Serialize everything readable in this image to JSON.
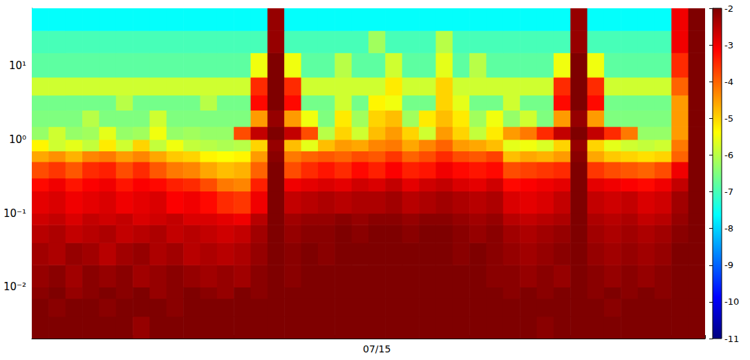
{
  "chart_data": {
    "type": "heatmap",
    "categories": [
      null,
      null,
      null,
      null,
      null,
      null,
      null,
      null,
      null,
      null,
      null,
      null,
      null,
      null,
      null,
      null,
      null,
      null,
      null,
      null,
      "07/15",
      null,
      null,
      null,
      null,
      null,
      null,
      null,
      null,
      null,
      null,
      null,
      null,
      null,
      null,
      null,
      null,
      null,
      null,
      null
    ],
    "y_edges": [
      0.002,
      0.004,
      0.007,
      0.01,
      0.02,
      0.04,
      0.07,
      0.1,
      0.2,
      0.3,
      0.5,
      0.7,
      1,
      1.5,
      2.5,
      4,
      7,
      15,
      30,
      60
    ],
    "cells": [
      [
        -2,
        -2,
        -2,
        -2,
        -2,
        -2,
        -2.2,
        -2,
        -2,
        -2,
        -2,
        -2,
        -2,
        -2,
        -2,
        -2,
        -2,
        -2,
        -2,
        -2,
        -2,
        -2,
        -2,
        -2,
        -2,
        -2,
        -2,
        -2,
        -2,
        -2,
        -2.1,
        -2,
        -2,
        -2,
        -2,
        -2,
        -2,
        -2,
        -2,
        -2
      ],
      [
        -2,
        -2.1,
        -2,
        -2,
        -2.1,
        -2,
        -2,
        -2,
        -2.1,
        -2,
        -2,
        -2,
        -2,
        -2,
        -2,
        -2,
        -2,
        -2,
        -2,
        -2,
        -2,
        -2,
        -2,
        -2,
        -2,
        -2,
        -2,
        -2,
        -2,
        -2,
        -2,
        -2,
        -2,
        -2,
        -2.1,
        -2,
        -2,
        -2,
        -2,
        -2
      ],
      [
        -2.1,
        -2,
        -2.2,
        -2.1,
        -2,
        -2.1,
        -2,
        -2.2,
        -2.1,
        -2,
        -2.1,
        -2.2,
        -2,
        -2.1,
        -2,
        -2,
        -2,
        -2,
        -2,
        -2,
        -2,
        -2,
        -2,
        -2,
        -2,
        -2,
        -2,
        -2,
        -2.1,
        -2,
        -2.1,
        -2,
        -2,
        -2.1,
        -2,
        -2.1,
        -2,
        -2.1,
        -2,
        -2
      ],
      [
        -2.2,
        -2.1,
        -2.3,
        -2.1,
        -2.2,
        -2.1,
        -2.3,
        -2.2,
        -2.1,
        -2.2,
        -2.3,
        -2.2,
        -2.3,
        -2.1,
        -2,
        -2.1,
        -2,
        -2,
        -2,
        -2,
        -2,
        -2,
        -2,
        -2,
        -2,
        -2,
        -2,
        -2.1,
        -2.1,
        -2.2,
        -2.1,
        -2.2,
        -2,
        -2.1,
        -2.2,
        -2.1,
        -2.2,
        -2.1,
        -2,
        -2
      ],
      [
        -2.3,
        -2.4,
        -2.2,
        -2.3,
        -2.5,
        -2.3,
        -2.2,
        -2.4,
        -2.3,
        -2.5,
        -2.4,
        -2.5,
        -2.4,
        -2.2,
        -2,
        -2.1,
        -2,
        -2.1,
        -2,
        -2,
        -2,
        -2,
        -2,
        -2,
        -2,
        -2.1,
        -2,
        -2.1,
        -2.2,
        -2.3,
        -2.2,
        -2.1,
        -2,
        -2.2,
        -2.3,
        -2.2,
        -2.3,
        -2.2,
        -2,
        -2
      ],
      [
        -2.5,
        -2.4,
        -2.6,
        -2.5,
        -2.4,
        -2.6,
        -2.5,
        -2.4,
        -2.6,
        -2.5,
        -2.6,
        -2.7,
        -2.6,
        -2.3,
        -2,
        -2.2,
        -2.1,
        -2.1,
        -2,
        -2.1,
        -2,
        -2,
        -2.1,
        -2,
        -2,
        -2.1,
        -2.2,
        -2.1,
        -2.3,
        -2.4,
        -2.3,
        -2.2,
        -2,
        -2.3,
        -2.4,
        -2.3,
        -2.4,
        -2.3,
        -2.1,
        -2
      ],
      [
        -2.7,
        -2.6,
        -2.8,
        -2.6,
        -2.7,
        -2.6,
        -2.8,
        -2.7,
        -2.6,
        -2.8,
        -2.8,
        -2.9,
        -3.0,
        -2.5,
        -2,
        -2.3,
        -2.2,
        -2.2,
        -2.1,
        -2.2,
        -2.1,
        -2.1,
        -2.2,
        -2.1,
        -2.1,
        -2.2,
        -2.3,
        -2.2,
        -2.5,
        -2.6,
        -2.5,
        -2.4,
        -2,
        -2.4,
        -2.5,
        -2.4,
        -2.6,
        -2.5,
        -2.2,
        -2
      ],
      [
        -2.9,
        -2.8,
        -3.0,
        -2.9,
        -2.8,
        -3.0,
        -2.9,
        -2.8,
        -3.1,
        -3.0,
        -3.2,
        -3.5,
        -3.6,
        -3.0,
        -2,
        -2.6,
        -2.5,
        -2.4,
        -2.5,
        -2.4,
        -2.4,
        -2.3,
        -2.5,
        -2.4,
        -2.3,
        -2.4,
        -2.5,
        -2.4,
        -2.8,
        -2.9,
        -2.8,
        -2.6,
        -2,
        -2.6,
        -2.7,
        -2.6,
        -2.8,
        -2.7,
        -2.3,
        -2
      ],
      [
        -3.2,
        -3.0,
        -3.3,
        -3.1,
        -3.0,
        -3.3,
        -3.1,
        -3.2,
        -3.4,
        -3.5,
        -3.8,
        -4.2,
        -4.3,
        -3.4,
        -2,
        -3.0,
        -2.9,
        -2.8,
        -2.9,
        -2.7,
        -2.8,
        -2.6,
        -2.9,
        -2.7,
        -2.6,
        -2.8,
        -2.9,
        -2.7,
        -3.2,
        -3.1,
        -3.0,
        -2.9,
        -2,
        -2.9,
        -3.0,
        -3.1,
        -3.2,
        -3.0,
        -2.6,
        -2
      ],
      [
        -3.8,
        -3.6,
        -3.9,
        -3.5,
        -3.4,
        -3.8,
        -3.5,
        -3.9,
        -4.2,
        -4.3,
        -4.6,
        -4.8,
        -4.7,
        -4.0,
        -2,
        -3.8,
        -3.5,
        -3.3,
        -3.5,
        -3.2,
        -3.4,
        -3.1,
        -3.4,
        -3.3,
        -3.0,
        -3.2,
        -3.3,
        -3.2,
        -3.8,
        -3.7,
        -3.6,
        -3.5,
        -2,
        -3.6,
        -3.8,
        -3.9,
        -4.0,
        -3.8,
        -3.0,
        -2
      ],
      [
        -4.6,
        -4.4,
        -4.7,
        -4.3,
        -4.2,
        -4.5,
        -4.3,
        -4.6,
        -4.9,
        -5.0,
        -5.3,
        -5.4,
        -5.3,
        -4.5,
        -2.1,
        -4.2,
        -4.0,
        -3.9,
        -4.0,
        -3.8,
        -3.9,
        -3.6,
        -4.0,
        -3.8,
        -3.5,
        -3.8,
        -3.9,
        -3.7,
        -4.8,
        -4.6,
        -4.7,
        -4.5,
        -2.1,
        -4.6,
        -4.9,
        -5.0,
        -5.1,
        -5.0,
        -4.0,
        -2
      ],
      [
        -5.3,
        -5.8,
        -5.6,
        -5.9,
        -5.2,
        -5.8,
        -5.0,
        -5.9,
        -5.5,
        -5.9,
        -6.0,
        -6.1,
        -6.0,
        -5.0,
        -2.2,
        -4.8,
        -5.6,
        -4.8,
        -4.5,
        -4.6,
        -4.3,
        -4.2,
        -4.6,
        -4.3,
        -4.0,
        -4.5,
        -4.6,
        -4.8,
        -5.6,
        -5.5,
        -5.7,
        -5.0,
        -2.2,
        -5.0,
        -5.6,
        -5.8,
        -5.9,
        -5.8,
        -4.2,
        -2
      ],
      [
        -6.3,
        -5.8,
        -6.3,
        -6.2,
        -5.6,
        -6.3,
        -6.2,
        -5.5,
        -6.3,
        -6.2,
        -6.3,
        -6.3,
        -3.8,
        -2.6,
        -2,
        -2.6,
        -3.8,
        -6.0,
        -5.0,
        -5.8,
        -4.8,
        -4.5,
        -5.0,
        -5.8,
        -4.5,
        -5.0,
        -5.9,
        -5.2,
        -4.5,
        -4.2,
        -3.5,
        -2.6,
        -2,
        -2.6,
        -3.5,
        -4.2,
        -6.3,
        -6.3,
        -4.5,
        -2
      ],
      [
        -6.5,
        -6.5,
        -6.5,
        -6.0,
        -6.5,
        -6.5,
        -6.5,
        -5.8,
        -6.5,
        -6.5,
        -6.5,
        -6.5,
        -6.5,
        -4.5,
        -2.2,
        -4.5,
        -5.5,
        -6.5,
        -5.2,
        -6.2,
        -5.0,
        -4.8,
        -6.2,
        -5.2,
        -4.8,
        -5.2,
        -6.2,
        -5.5,
        -6.3,
        -5.8,
        -6.5,
        -4.5,
        -2.2,
        -4.5,
        -6.5,
        -6.5,
        -6.5,
        -6.5,
        -4.5,
        -2
      ],
      [
        -6.6,
        -6.6,
        -6.6,
        -6.6,
        -6.6,
        -6.0,
        -6.6,
        -6.6,
        -6.6,
        -6.6,
        -6.0,
        -6.6,
        -6.6,
        -3.2,
        -2,
        -3.2,
        -6.6,
        -6.6,
        -5.8,
        -6.6,
        -5.3,
        -5.5,
        -6.6,
        -6.6,
        -5.0,
        -5.6,
        -6.6,
        -6.6,
        -5.8,
        -6.6,
        -6.6,
        -3.2,
        -2,
        -3.2,
        -6.6,
        -6.6,
        -6.6,
        -6.6,
        -4.5,
        -2
      ],
      [
        -5.8,
        -5.8,
        -5.8,
        -5.8,
        -5.8,
        -5.8,
        -5.8,
        -5.8,
        -5.8,
        -5.8,
        -5.8,
        -5.8,
        -5.8,
        -3.5,
        -2,
        -3.5,
        -5.8,
        -5.8,
        -5.8,
        -5.8,
        -5.8,
        -5.2,
        -5.8,
        -5.8,
        -5.0,
        -5.8,
        -5.8,
        -5.8,
        -5.8,
        -5.8,
        -5.8,
        -3.5,
        -2,
        -3.5,
        -5.8,
        -5.8,
        -5.8,
        -5.8,
        -4,
        -2
      ],
      [
        -6.8,
        -6.8,
        -6.8,
        -6.8,
        -6.8,
        -6.8,
        -6.8,
        -6.8,
        -6.8,
        -6.8,
        -6.8,
        -6.8,
        -6.8,
        -5.5,
        -2,
        -5.5,
        -6.8,
        -6.8,
        -6.0,
        -6.8,
        -6.8,
        -5.8,
        -6.8,
        -6.8,
        -5.6,
        -6.8,
        -6.0,
        -6.8,
        -6.8,
        -6.8,
        -6.8,
        -5.5,
        -2,
        -5.5,
        -6.8,
        -6.8,
        -6.8,
        -6.8,
        -3.5,
        -2
      ],
      [
        -7,
        -7,
        -7,
        -7,
        -7,
        -7,
        -7,
        -7,
        -7,
        -7,
        -7,
        -7,
        -7,
        -7,
        -2.2,
        -7,
        -7,
        -7,
        -7,
        -7,
        -6.2,
        -7,
        -7,
        -7,
        -6.0,
        -7,
        -7,
        -7,
        -7,
        -7,
        -7,
        -7,
        -2.2,
        -7,
        -7,
        -7,
        -7,
        -7,
        -3,
        -2
      ],
      [
        -7.6,
        -7.6,
        -7.6,
        -7.6,
        -7.6,
        -7.6,
        -7.6,
        -7.6,
        -7.6,
        -7.6,
        -7.6,
        -7.6,
        -7.6,
        -7.6,
        -2.2,
        -7.6,
        -7.6,
        -7.6,
        -7.6,
        -7.6,
        -7.6,
        -7.6,
        -7.6,
        -7.6,
        -7.6,
        -7.6,
        -7.6,
        -7.6,
        -7.6,
        -7.6,
        -7.6,
        -7.6,
        -2.2,
        -7.6,
        -7.6,
        -7.6,
        -7.6,
        -7.6,
        -3,
        -2
      ]
    ],
    "ylim": [
      0.002,
      60
    ],
    "yticks": [
      {
        "value": 0.01,
        "label": "10⁻²"
      },
      {
        "value": 0.1,
        "label": "10⁻¹"
      },
      {
        "value": 1,
        "label": "10⁰"
      },
      {
        "value": 10,
        "label": "10¹"
      }
    ],
    "log": "y",
    "grid": false,
    "colorbar": {
      "range": [
        -11,
        -2
      ],
      "ticks": [
        -2,
        -3,
        -4,
        -5,
        -6,
        -7,
        -8,
        -9,
        -10,
        -11
      ]
    }
  }
}
